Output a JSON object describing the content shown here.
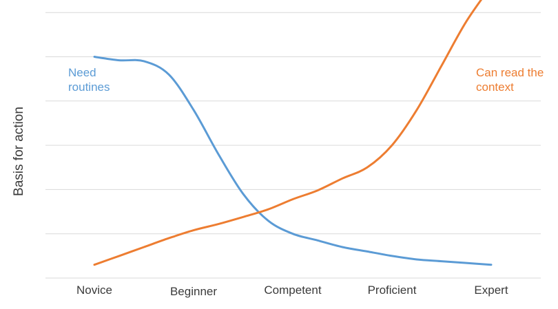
{
  "chart_data": {
    "type": "line",
    "title": "",
    "xlabel": "",
    "ylabel": "Basis for action",
    "categories": [
      "Novice",
      "Beginner",
      "Competent",
      "Proficient",
      "Expert"
    ],
    "x": [
      1,
      1.25,
      1.5,
      1.75,
      2,
      2.25,
      2.5,
      2.75,
      3,
      3.25,
      3.5,
      3.75,
      4,
      4.25,
      4.5,
      4.75,
      5
    ],
    "ylim": [
      0,
      6
    ],
    "grid": true,
    "series": [
      {
        "name": "Need routines",
        "color": "#5b9bd5",
        "values": [
          5.0,
          4.92,
          4.9,
          4.6,
          3.8,
          2.8,
          1.9,
          1.3,
          1.0,
          0.85,
          0.7,
          0.6,
          0.5,
          0.42,
          0.38,
          0.34,
          0.3
        ]
      },
      {
        "name": "Can read the context",
        "color": "#ed7d31",
        "values": [
          0.3,
          0.5,
          0.7,
          0.9,
          1.08,
          1.22,
          1.38,
          1.55,
          1.78,
          1.98,
          2.25,
          2.5,
          3.0,
          3.8,
          4.8,
          5.8,
          6.6
        ]
      }
    ],
    "annotations": [
      {
        "series": "Need routines",
        "lines": [
          "Need",
          "routines"
        ]
      },
      {
        "series": "Can read the context",
        "lines": [
          "Can read the",
          "context"
        ]
      }
    ]
  }
}
